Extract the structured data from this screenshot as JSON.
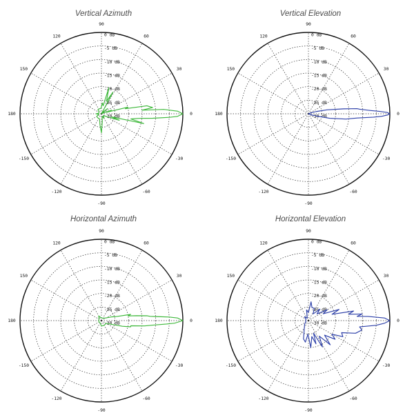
{
  "polar": {
    "angle_labels": [
      "0",
      "30",
      "60",
      "90",
      "120",
      "150",
      "180",
      "-150",
      "-120",
      "-90",
      "-60",
      "-30"
    ],
    "db_labels": [
      "0 dB",
      "-5 dB",
      "-10 dB",
      "-15 dB",
      "-20 dB",
      "-25 dB",
      "-30 dB"
    ]
  },
  "chart_data": [
    {
      "type": "polar",
      "title": "Vertical Azimuth",
      "color": "#3db83a",
      "r_range_db": [
        -30,
        0
      ],
      "angle_ticks_deg": [
        0,
        30,
        60,
        90,
        120,
        150,
        180,
        -150,
        -120,
        -90,
        -60,
        -30
      ],
      "series": [
        {
          "name": "Vertical Azimuth",
          "points": [
            [
              0,
              0
            ],
            [
              2,
              -2
            ],
            [
              4,
              -7
            ],
            [
              5,
              -15
            ],
            [
              7,
              -11
            ],
            [
              10,
              -13
            ],
            [
              12,
              -21
            ],
            [
              14,
              -20
            ],
            [
              16,
              -28
            ],
            [
              20,
              -26
            ],
            [
              28,
              -30
            ],
            [
              40,
              -27
            ],
            [
              48,
              -29
            ],
            [
              55,
              -30
            ],
            [
              62,
              -21
            ],
            [
              68,
              -25
            ],
            [
              74,
              -20
            ],
            [
              78,
              -27
            ],
            [
              85,
              -26
            ],
            [
              95,
              -28
            ],
            [
              110,
              -28
            ],
            [
              130,
              -28
            ],
            [
              150,
              -29
            ],
            [
              170,
              -29
            ],
            [
              180,
              -28
            ],
            [
              190,
              -29
            ],
            [
              210,
              -28
            ],
            [
              230,
              -28
            ],
            [
              250,
              -28
            ],
            [
              262,
              -26
            ],
            [
              270,
              -23
            ],
            [
              276,
              -27
            ],
            [
              285,
              -29
            ],
            [
              300,
              -28
            ],
            [
              320,
              -29
            ],
            [
              335,
              -27
            ],
            [
              340,
              -23
            ],
            [
              343,
              -26
            ],
            [
              347,
              -14
            ],
            [
              350,
              -19
            ],
            [
              353,
              -16
            ],
            [
              355,
              -11
            ],
            [
              357,
              -5
            ],
            [
              358,
              -2
            ],
            [
              360,
              0
            ]
          ]
        }
      ]
    },
    {
      "type": "polar",
      "title": "Vertical Elevation",
      "color": "#2c3fa8",
      "r_range_db": [
        -30,
        0
      ],
      "angle_ticks_deg": [
        0,
        30,
        60,
        90,
        120,
        150,
        180,
        -150,
        -120,
        -90,
        -60,
        -30
      ],
      "series": [
        {
          "name": "Vertical Elevation",
          "points": [
            [
              0,
              0
            ],
            [
              1,
              -1
            ],
            [
              2,
              -4
            ],
            [
              3,
              -7
            ],
            [
              5,
              -11
            ],
            [
              6,
              -12
            ],
            [
              8,
              -17
            ],
            [
              12,
              -23
            ],
            [
              16,
              -27
            ],
            [
              22,
              -29
            ],
            [
              30,
              -30
            ],
            [
              330,
              -30
            ],
            [
              338,
              -29
            ],
            [
              344,
              -27
            ],
            [
              348,
              -22
            ],
            [
              352,
              -16
            ],
            [
              355,
              -12
            ],
            [
              357,
              -6
            ],
            [
              358,
              -3
            ],
            [
              359,
              -1
            ],
            [
              360,
              0
            ]
          ]
        }
      ]
    },
    {
      "type": "polar",
      "title": "Horizontal Azimuth",
      "color": "#3db83a",
      "r_range_db": [
        -30,
        0
      ],
      "angle_ticks_deg": [
        0,
        30,
        60,
        90,
        120,
        150,
        180,
        -150,
        -120,
        -90,
        -60,
        -30
      ],
      "series": [
        {
          "name": "Horizontal Azimuth",
          "points": [
            [
              0,
              0
            ],
            [
              2,
              -2
            ],
            [
              3,
              -5
            ],
            [
              4,
              -9
            ],
            [
              5,
              -12
            ],
            [
              6,
              -13
            ],
            [
              8,
              -17
            ],
            [
              10,
              -20
            ],
            [
              12,
              -19
            ],
            [
              15,
              -24
            ],
            [
              20,
              -26
            ],
            [
              30,
              -28
            ],
            [
              60,
              -29
            ],
            [
              90,
              -29
            ],
            [
              120,
              -28
            ],
            [
              150,
              -29
            ],
            [
              180,
              -29
            ],
            [
              210,
              -29
            ],
            [
              240,
              -29
            ],
            [
              270,
              -28
            ],
            [
              300,
              -28
            ],
            [
              330,
              -28
            ],
            [
              340,
              -26
            ],
            [
              345,
              -22
            ],
            [
              348,
              -19
            ],
            [
              350,
              -19
            ],
            [
              353,
              -14
            ],
            [
              355,
              -11
            ],
            [
              357,
              -6
            ],
            [
              358,
              -3
            ],
            [
              360,
              0
            ]
          ]
        }
      ]
    },
    {
      "type": "polar",
      "title": "Horizontal Elevation",
      "color": "#2c3fa8",
      "r_range_db": [
        -30,
        0
      ],
      "angle_ticks_deg": [
        0,
        30,
        60,
        90,
        120,
        150,
        180,
        -150,
        -120,
        -90,
        -60,
        -30
      ],
      "series": [
        {
          "name": "Horizontal Elevation",
          "points": [
            [
              0,
              0
            ],
            [
              2,
              -2
            ],
            [
              4,
              -8
            ],
            [
              5,
              -12
            ],
            [
              7,
              -10
            ],
            [
              9,
              -15
            ],
            [
              12,
              -13
            ],
            [
              15,
              -21
            ],
            [
              20,
              -18
            ],
            [
              25,
              -24
            ],
            [
              30,
              -22
            ],
            [
              38,
              -26
            ],
            [
              45,
              -24
            ],
            [
              55,
              -27
            ],
            [
              65,
              -25
            ],
            [
              75,
              -25
            ],
            [
              82,
              -23
            ],
            [
              90,
              -27
            ],
            [
              100,
              -26
            ],
            [
              115,
              -29
            ],
            [
              135,
              -28
            ],
            [
              155,
              -29
            ],
            [
              180,
              -29
            ],
            [
              200,
              -29
            ],
            [
              225,
              -28
            ],
            [
              240,
              -27
            ],
            [
              255,
              -23
            ],
            [
              262,
              -22
            ],
            [
              268,
              -25
            ],
            [
              275,
              -20
            ],
            [
              282,
              -24
            ],
            [
              288,
              -21
            ],
            [
              292,
              -25
            ],
            [
              298,
              -19
            ],
            [
              305,
              -23
            ],
            [
              312,
              -18
            ],
            [
              318,
              -22
            ],
            [
              325,
              -18
            ],
            [
              330,
              -20
            ],
            [
              335,
              -16
            ],
            [
              340,
              -17
            ],
            [
              345,
              -12
            ],
            [
              350,
              -10
            ],
            [
              353,
              -11
            ],
            [
              356,
              -5
            ],
            [
              358,
              -2
            ],
            [
              360,
              0
            ]
          ]
        }
      ]
    }
  ]
}
